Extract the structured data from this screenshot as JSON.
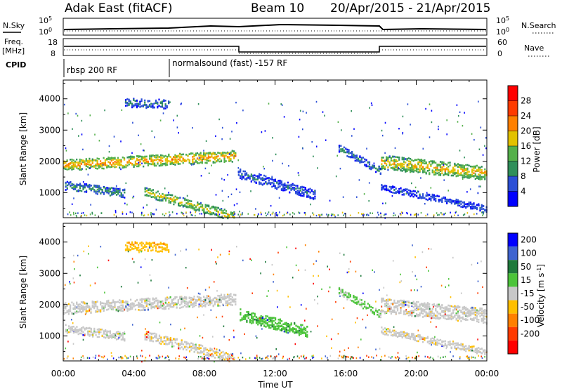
{
  "header": {
    "title": "Adak East (fitACF)",
    "beam": "Beam 10",
    "date_range": "20/Apr/2015 - 21/Apr/2015"
  },
  "panels": {
    "nsky_label": "N.Sky",
    "nsearch_label": "N.Search",
    "freq_label_1": "Freq.",
    "freq_label_2": "[MHz]",
    "nave_label": "Nave",
    "cpid_label": "CPID",
    "nsky_ticks": [
      "10^5",
      "10^0"
    ],
    "nsearch_ticks": [
      "10^5",
      "10^0"
    ],
    "freq_ticks": [
      "18",
      "8"
    ],
    "nave_ticks": [
      "60",
      "0"
    ],
    "cpid_segments": [
      "rbsp 200 RF",
      "normalsound (fast) -157 RF"
    ]
  },
  "colors": {
    "power_scale": [
      "#0000ff",
      "#2b4fd6",
      "#2f8f5a",
      "#54b04a",
      "#e2c100",
      "#ff8000",
      "#ff3b00",
      "#ff0000"
    ],
    "velocity_scale": [
      "#0000ff",
      "#3f64d0",
      "#1f7a3c",
      "#4cc43a",
      "#c8c8c8",
      "#ffbf00",
      "#ff8000",
      "#ff3b00",
      "#ff0000"
    ]
  },
  "chart_data": [
    {
      "type": "heatmap",
      "title": "",
      "xlabel": "",
      "ylabel": "Slant Range [km]",
      "x_ticks": [
        "00:00",
        "04:00",
        "08:00",
        "12:00",
        "16:00",
        "20:00",
        "00:00"
      ],
      "y_ticks": [
        1000,
        2000,
        3000,
        4000
      ],
      "ylim": [
        200,
        4600
      ],
      "colorbar_label": "Power [dB]",
      "colorbar_ticks": [
        4,
        8,
        12,
        16,
        20,
        24,
        28
      ],
      "clim": [
        0,
        32
      ],
      "bands": [
        {
          "t0": 0.0,
          "t1": 9.8,
          "r_start": 1900,
          "r_end": 2200,
          "width": 220,
          "level": 22
        },
        {
          "t0": 0.1,
          "t1": 3.5,
          "r_start": 1250,
          "r_end": 1000,
          "width": 170,
          "level": 10
        },
        {
          "t0": 4.6,
          "t1": 9.7,
          "r_start": 1050,
          "r_end": 250,
          "width": 180,
          "level": 18
        },
        {
          "t0": 3.5,
          "t1": 6.0,
          "r_start": 3900,
          "r_end": 3850,
          "width": 180,
          "level": 8
        },
        {
          "t0": 9.9,
          "t1": 14.3,
          "r_start": 1650,
          "r_end": 950,
          "width": 200,
          "level": 7
        },
        {
          "t0": 15.6,
          "t1": 18.0,
          "r_start": 2450,
          "r_end": 1700,
          "width": 150,
          "level": 9
        },
        {
          "t0": 18.0,
          "t1": 24.0,
          "r_start": 2000,
          "r_end": 1650,
          "width": 280,
          "level": 20
        },
        {
          "t0": 18.0,
          "t1": 24.0,
          "r_start": 1200,
          "r_end": 500,
          "width": 130,
          "level": 6
        }
      ]
    },
    {
      "type": "heatmap",
      "title": "",
      "xlabel": "Time UT",
      "ylabel": "Slant Range [km]",
      "x_ticks": [
        "00:00",
        "04:00",
        "08:00",
        "12:00",
        "16:00",
        "20:00",
        "00:00"
      ],
      "y_ticks": [
        1000,
        2000,
        3000,
        4000
      ],
      "ylim": [
        200,
        4600
      ],
      "colorbar_label": "Velocity [m s^-1]",
      "colorbar_ticks": [
        200,
        100,
        50,
        15,
        -15,
        -50,
        -100,
        -200
      ],
      "clim": [
        -250,
        250
      ],
      "bands": [
        {
          "t0": 0.0,
          "t1": 9.8,
          "r_start": 1900,
          "r_end": 2200,
          "width": 230,
          "level": 0
        },
        {
          "t0": 0.1,
          "t1": 3.5,
          "r_start": 1250,
          "r_end": 1000,
          "width": 170,
          "level": 0
        },
        {
          "t0": 4.6,
          "t1": 9.7,
          "r_start": 1050,
          "r_end": 300,
          "width": 180,
          "level": -10
        },
        {
          "t0": 3.5,
          "t1": 6.0,
          "r_start": 3900,
          "r_end": 3850,
          "width": 180,
          "level": -60
        },
        {
          "t0": 10.0,
          "t1": 13.8,
          "r_start": 1700,
          "r_end": 1150,
          "width": 230,
          "level": 60
        },
        {
          "t0": 15.6,
          "t1": 18.0,
          "r_start": 2450,
          "r_end": 1700,
          "width": 150,
          "level": 40
        },
        {
          "t0": 18.0,
          "t1": 24.0,
          "r_start": 2000,
          "r_end": 1650,
          "width": 300,
          "level": 0
        },
        {
          "t0": 18.0,
          "t1": 24.0,
          "r_start": 1200,
          "r_end": 500,
          "width": 130,
          "level": -5
        }
      ]
    }
  ]
}
